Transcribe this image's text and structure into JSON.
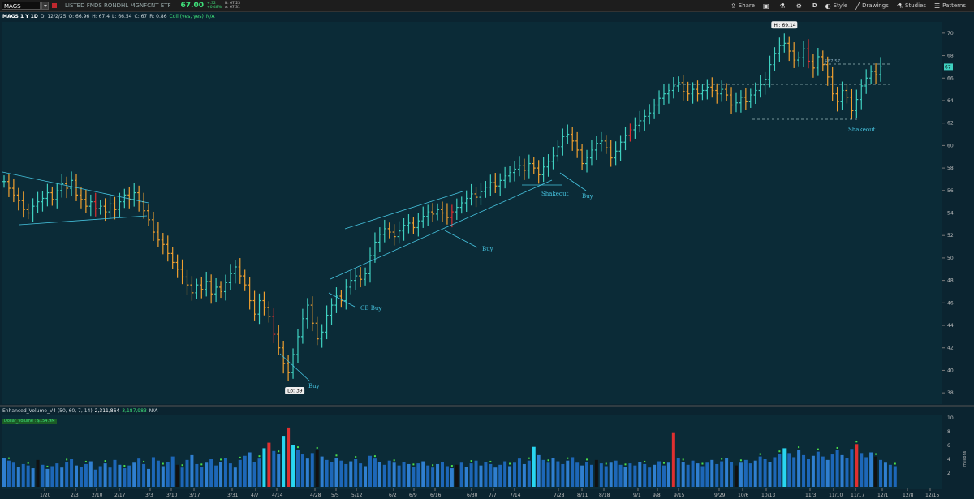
{
  "toolbar": {
    "symbol": "MAGS",
    "description": "LISTED FNDS RONDHL MGNFCNT ETF",
    "last": "67.00",
    "change": "+.32",
    "change_pct": "+0.48%",
    "bid": "B: 67.23",
    "ask": "A: 67.31",
    "period": "D",
    "style_label": "Style",
    "drawings_label": "Drawings",
    "studies_label": "Studies",
    "patterns_label": "Patterns",
    "share_label": "Share"
  },
  "info": {
    "chart_title": "MAGS 1 Y 1D",
    "date": "D: 12/2/25",
    "open": "O: 66.96",
    "high": "H: 67.4",
    "low": "L: 66.54",
    "close": "C: 67",
    "range": "R: 0.86",
    "coil": "Coil (yes, yes)",
    "na": "N/A"
  },
  "volume_header": {
    "study": "Enhanced_Volume_V4 (50, 60, 7, 14)",
    "v1": "2,311,864",
    "v2": "3,187,983",
    "na": "N/A",
    "dollar_volume": "Dollar_Volume : $154.9M",
    "vol_unit": "millions"
  },
  "colors": {
    "up": "#3fd0c0",
    "down": "#f0a030",
    "red": "#e03030",
    "line": "#46c3de",
    "hilo_bg": "#eeeeee"
  },
  "chart_data": {
    "type": "ohlc",
    "price_axis": {
      "min": 37,
      "max": 71,
      "ticks": [
        "38",
        "40",
        "42",
        "44",
        "46",
        "48",
        "50",
        "52",
        "54",
        "56",
        "58",
        "60",
        "62",
        "64",
        "66",
        "68",
        "70"
      ]
    },
    "current_price_label": "67",
    "x_ticks": [
      "1/20",
      "2/3",
      "2/10",
      "2/17",
      "3/3",
      "3/10",
      "3/17",
      "3/31",
      "4/7",
      "4/14",
      "4/28",
      "5/5",
      "5/12",
      "6/2",
      "6/9",
      "6/16",
      "6/30",
      "7/7",
      "7/14",
      "7/28",
      "8/11",
      "8/18",
      "9/1",
      "9/8",
      "9/15",
      "9/29",
      "10/6",
      "10/13",
      "11/3",
      "11/10",
      "11/17",
      "12/1",
      "12/8",
      "12/15"
    ],
    "hi_label": "Hi: 69.14",
    "lo_label": "Lo: 39",
    "level_label": "$67.57",
    "annotations": [
      "Buy",
      "CB Buy",
      "Buy",
      "Shakeout",
      "Buy",
      "Shakeout"
    ],
    "closes": [
      56.8,
      56.2,
      55.6,
      55.1,
      54.3,
      54.0,
      54.6,
      55.0,
      55.3,
      55.8,
      55.2,
      56.0,
      56.6,
      56.2,
      56.9,
      55.6,
      55.2,
      54.6,
      55.0,
      54.4,
      54.6,
      54.1,
      54.8,
      54.3,
      55.0,
      55.6,
      55.2,
      55.8,
      55.0,
      54.2,
      53.4,
      52.3,
      51.6,
      51.2,
      50.4,
      49.6,
      49.0,
      48.3,
      47.6,
      46.9,
      47.6,
      47.2,
      47.9,
      46.8,
      47.4,
      47.0,
      47.8,
      48.6,
      49.2,
      48.4,
      47.6,
      46.2,
      45.0,
      46.2,
      45.6,
      44.8,
      43.2,
      42.0,
      40.6,
      39.8,
      41.4,
      43.0,
      44.6,
      45.8,
      44.2,
      42.8,
      43.4,
      44.9,
      45.8,
      46.6,
      46.2,
      47.4,
      48.0,
      48.4,
      48.1,
      48.6,
      50.2,
      51.4,
      52.1,
      52.6,
      52.3,
      51.9,
      52.4,
      52.9,
      53.1,
      52.7,
      53.3,
      53.7,
      54.1,
      53.9,
      54.3,
      54.0,
      53.6,
      54.1,
      54.5,
      54.9,
      55.3,
      55.7,
      55.4,
      55.9,
      56.3,
      56.7,
      56.4,
      56.9,
      57.3,
      57.6,
      57.9,
      58.2,
      57.8,
      58.4,
      58.0,
      57.4,
      58.1,
      58.6,
      59.1,
      59.9,
      60.8,
      61.0,
      60.4,
      59.6,
      58.4,
      58.9,
      59.6,
      60.2,
      60.4,
      59.8,
      58.9,
      59.5,
      60.3,
      60.9,
      61.4,
      61.8,
      62.2,
      62.6,
      62.9,
      63.6,
      64.2,
      64.6,
      64.9,
      65.3,
      65.6,
      64.8,
      64.6,
      65.0,
      64.6,
      64.9,
      65.2,
      64.9,
      64.6,
      65.0,
      64.5,
      63.6,
      63.8,
      64.3,
      63.9,
      64.5,
      64.9,
      65.4,
      65.9,
      67.2,
      68.2,
      68.9,
      69.1,
      68.4,
      67.6,
      67.8,
      68.6,
      67.5,
      66.9,
      67.9,
      67.2,
      66.1,
      64.6,
      63.9,
      64.9,
      64.3,
      63.1,
      64.1,
      65.3,
      66.0,
      66.6,
      66.3,
      67.0
    ],
    "volumes": [
      4.2,
      3.8,
      3.5,
      2.9,
      3.3,
      3.1,
      2.7,
      3.9,
      3.2,
      2.6,
      3.0,
      3.4,
      2.8,
      3.6,
      4.0,
      3.1,
      2.9,
      3.3,
      3.7,
      2.5,
      3.0,
      3.4,
      2.8,
      3.9,
      3.2,
      2.7,
      3.1,
      3.5,
      4.1,
      3.3,
      2.6,
      4.3,
      3.8,
      3.0,
      3.6,
      4.4,
      3.2,
      2.8,
      3.9,
      4.6,
      3.3,
      2.9,
      3.5,
      4.0,
      3.1,
      3.6,
      4.2,
      3.4,
      2.8,
      3.9,
      4.5,
      5.0,
      3.6,
      4.1,
      5.6,
      6.4,
      5.2,
      4.8,
      7.4,
      8.6,
      6.0,
      5.4,
      4.7,
      4.1,
      4.9,
      5.3,
      4.4,
      3.9,
      3.6,
      4.2,
      3.8,
      3.3,
      3.7,
      4.0,
      3.4,
      3.0,
      4.5,
      4.1,
      3.6,
      3.2,
      3.8,
      3.5,
      3.1,
      3.6,
      3.3,
      2.9,
      3.4,
      3.7,
      3.1,
      2.8,
      3.3,
      3.6,
      3.0,
      2.7,
      3.2,
      3.5,
      2.9,
      3.4,
      3.8,
      3.1,
      3.6,
      3.3,
      2.8,
      3.2,
      3.7,
      3.0,
      3.5,
      4.1,
      3.3,
      3.8,
      5.8,
      4.6,
      3.9,
      3.5,
      4.2,
      3.7,
      3.3,
      3.8,
      4.3,
      3.5,
      3.1,
      3.6,
      3.2,
      3.9,
      3.4,
      3.0,
      3.5,
      3.8,
      3.2,
      2.9,
      3.4,
      3.1,
      3.6,
      3.3,
      2.8,
      3.2,
      3.7,
      3.1,
      3.5,
      7.8,
      4.2,
      3.6,
      3.2,
      3.8,
      3.4,
      3.0,
      3.5,
      3.9,
      3.3,
      3.7,
      4.2,
      3.6,
      3.1,
      3.5,
      3.9,
      3.4,
      3.8,
      4.4,
      4.0,
      3.6,
      4.3,
      4.8,
      5.6,
      4.9,
      4.3,
      5.4,
      4.6,
      4.0,
      4.5,
      5.1,
      4.4,
      3.9,
      4.7,
      5.3,
      4.6,
      4.2,
      5.5,
      6.2,
      4.9,
      4.3,
      5.0,
      4.4,
      3.9,
      3.5,
      3.2,
      3.0
    ]
  }
}
